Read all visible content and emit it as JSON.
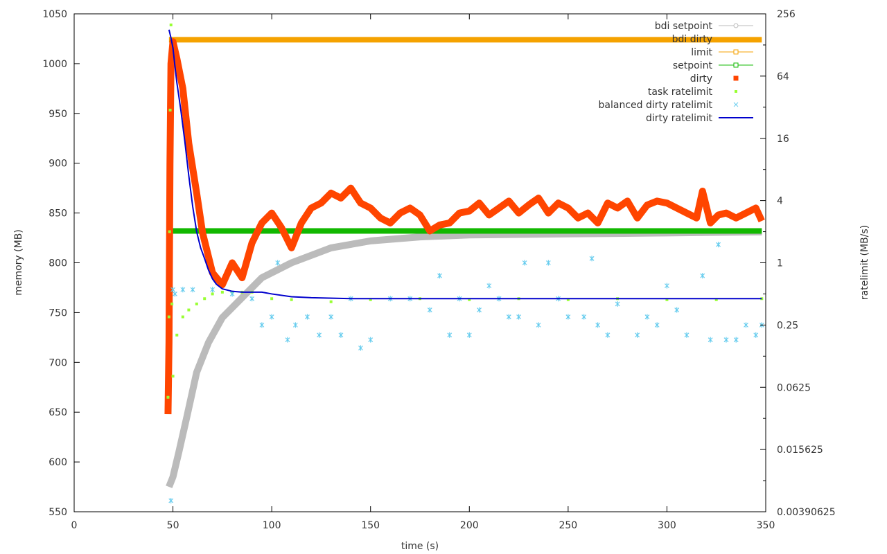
{
  "chart_data": {
    "type": "scatter",
    "title": "",
    "xlabel": "time (s)",
    "ylabel": "memory (MB)",
    "y2label": "ratelimit (MB/s)",
    "xlim": [
      0,
      350
    ],
    "ylim": [
      550,
      1050
    ],
    "y2lim": [
      0.00390625,
      256
    ],
    "y2scale": "log2",
    "grid": false,
    "legend_position": "top-right",
    "xticks": [
      0,
      50,
      100,
      150,
      200,
      250,
      300,
      350
    ],
    "xtick_labels": [
      "0",
      "50",
      "100",
      "150",
      "200",
      "250",
      "300",
      "350"
    ],
    "yticks": [
      550,
      600,
      650,
      700,
      750,
      800,
      850,
      900,
      950,
      1000,
      1050
    ],
    "ytick_labels": [
      "550",
      "600",
      "650",
      "700",
      "750",
      "800",
      "850",
      "900",
      "950",
      "1000",
      "1050"
    ],
    "y2ticks": [
      0.00390625,
      0.015625,
      0.0625,
      0.25,
      1,
      4,
      16,
      64,
      256
    ],
    "y2tick_labels": [
      "0.00390625",
      "0.015625",
      "0.0625",
      "0.25",
      "1",
      "4",
      "16",
      "64",
      "256"
    ],
    "series": [
      {
        "name": "bdi setpoint",
        "axis": "y1",
        "color": "#bbbbbb",
        "style": "thick-line",
        "x": [
          48,
          50,
          53,
          57,
          62,
          68,
          75,
          85,
          95,
          110,
          130,
          150,
          175,
          200,
          250,
          300,
          348
        ],
        "y": [
          575,
          585,
          610,
          645,
          690,
          720,
          745,
          765,
          785,
          800,
          815,
          822,
          826,
          828,
          829,
          830,
          831
        ]
      },
      {
        "name": "bdi dirty",
        "axis": "y1",
        "color": "#bbbbbb",
        "style": "none",
        "x": [],
        "y": []
      },
      {
        "name": "limit",
        "axis": "y1",
        "color": "#f5a200",
        "style": "thick-line",
        "x": [
          48,
          348
        ],
        "y": [
          1024,
          1024
        ]
      },
      {
        "name": "setpoint",
        "axis": "y1",
        "color": "#12b800",
        "style": "thick-line",
        "x": [
          49,
          348
        ],
        "y": [
          832,
          832
        ]
      },
      {
        "name": "dirty",
        "axis": "y1",
        "color": "#ff4500",
        "style": "thick-line",
        "x": [
          47.5,
          48,
          48.5,
          49,
          50,
          52,
          55,
          58,
          62,
          65,
          70,
          75,
          80,
          85,
          90,
          95,
          100,
          105,
          110,
          115,
          120,
          125,
          130,
          135,
          140,
          145,
          150,
          155,
          160,
          165,
          170,
          175,
          180,
          185,
          190,
          195,
          200,
          205,
          210,
          215,
          220,
          225,
          230,
          235,
          240,
          245,
          250,
          255,
          260,
          265,
          270,
          275,
          280,
          285,
          290,
          295,
          300,
          305,
          310,
          315,
          318,
          322,
          326,
          330,
          335,
          340,
          345,
          348
        ],
        "y": [
          648,
          720,
          900,
          1000,
          1022,
          1005,
          975,
          920,
          870,
          830,
          790,
          778,
          800,
          785,
          820,
          840,
          850,
          835,
          815,
          840,
          855,
          860,
          870,
          865,
          875,
          860,
          855,
          845,
          840,
          850,
          855,
          848,
          832,
          838,
          840,
          850,
          852,
          860,
          848,
          855,
          862,
          850,
          858,
          865,
          850,
          860,
          855,
          845,
          850,
          840,
          860,
          855,
          862,
          845,
          858,
          862,
          860,
          855,
          850,
          845,
          872,
          840,
          848,
          850,
          845,
          850,
          855,
          842
        ]
      },
      {
        "name": "task ratelimit",
        "axis": "y2",
        "color": "#99ff33",
        "style": "points",
        "x": [
          47.5,
          48,
          48.3,
          48.6,
          49,
          49.5,
          50,
          52,
          55,
          58,
          62,
          66,
          70,
          75,
          80,
          85,
          90,
          100,
          110,
          130,
          150,
          175,
          200,
          225,
          250,
          275,
          300,
          325,
          348
        ],
        "y": [
          0.05,
          0.3,
          2,
          30,
          200,
          0.4,
          0.08,
          0.2,
          0.3,
          0.35,
          0.4,
          0.45,
          0.5,
          0.52,
          0.52,
          0.52,
          0.52,
          0.45,
          0.44,
          0.42,
          0.44,
          0.45,
          0.44,
          0.45,
          0.44,
          0.45,
          0.44,
          0.44,
          0.45
        ]
      },
      {
        "name": "balanced dirty ratelimit",
        "axis": "y2",
        "color": "#66ccee",
        "style": "points",
        "x": [
          49,
          50,
          51,
          55,
          60,
          70,
          80,
          90,
          95,
          100,
          103,
          108,
          112,
          118,
          124,
          130,
          135,
          140,
          145,
          150,
          160,
          170,
          180,
          185,
          190,
          195,
          200,
          205,
          210,
          215,
          220,
          225,
          228,
          235,
          240,
          245,
          250,
          258,
          262,
          265,
          270,
          275,
          285,
          290,
          295,
          300,
          305,
          310,
          318,
          322,
          326,
          330,
          335,
          340,
          345,
          348
        ],
        "y": [
          0.005,
          0.55,
          0.5,
          0.55,
          0.55,
          0.55,
          0.5,
          0.45,
          0.25,
          0.3,
          1.0,
          0.18,
          0.25,
          0.3,
          0.2,
          0.3,
          0.2,
          0.45,
          0.15,
          0.18,
          0.45,
          0.45,
          0.35,
          0.75,
          0.2,
          0.45,
          0.2,
          0.35,
          0.6,
          0.45,
          0.3,
          0.3,
          1.0,
          0.25,
          1.0,
          0.45,
          0.3,
          0.3,
          1.1,
          0.25,
          0.2,
          0.4,
          0.2,
          0.3,
          0.25,
          0.6,
          0.35,
          0.2,
          0.75,
          0.18,
          1.5,
          0.18,
          0.18,
          0.25,
          0.2,
          0.25
        ]
      },
      {
        "name": "dirty ratelimit",
        "axis": "y2",
        "color": "#0000cc",
        "style": "line",
        "x": [
          48,
          49,
          50,
          51,
          52,
          54,
          56,
          58,
          60,
          62,
          64,
          66,
          68,
          70,
          72,
          75,
          80,
          85,
          90,
          95,
          100,
          110,
          120,
          140,
          160,
          200,
          250,
          300,
          348
        ],
        "y": [
          180,
          150,
          120,
          80,
          55,
          30,
          15,
          7,
          3.5,
          2,
          1.4,
          1.1,
          0.85,
          0.7,
          0.62,
          0.56,
          0.53,
          0.52,
          0.52,
          0.52,
          0.5,
          0.47,
          0.46,
          0.45,
          0.45,
          0.45,
          0.45,
          0.45,
          0.45
        ]
      }
    ]
  }
}
